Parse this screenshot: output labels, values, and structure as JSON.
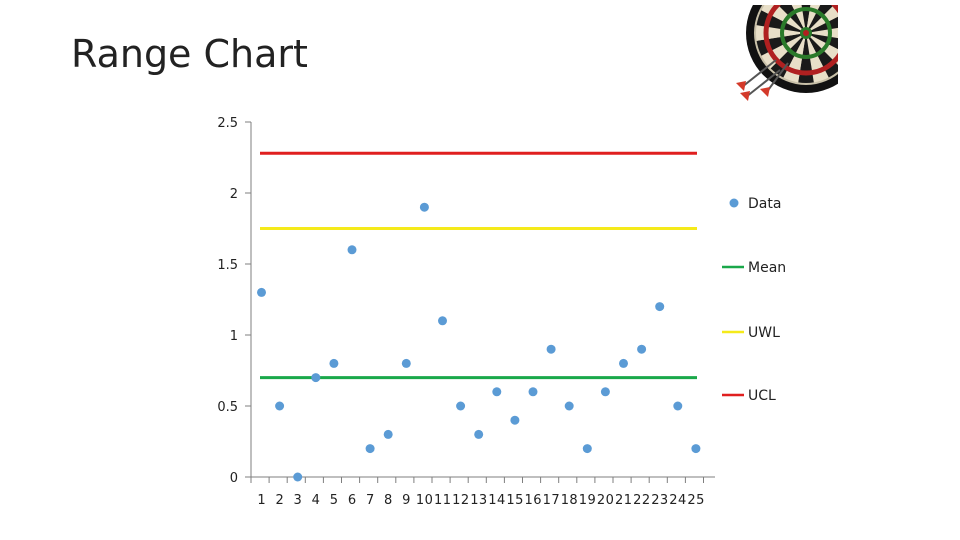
{
  "slide": {
    "title": "Range Chart"
  },
  "decoration": {
    "icon": "dartboard-with-darts-icon"
  },
  "chart_data": {
    "type": "scatter",
    "title": "",
    "xlabel": "",
    "ylabel": "",
    "x": [
      1,
      2,
      3,
      4,
      5,
      6,
      7,
      8,
      9,
      10,
      11,
      12,
      13,
      14,
      15,
      16,
      17,
      18,
      19,
      20,
      21,
      22,
      23,
      24,
      25
    ],
    "x_tick_labels": [
      "1",
      "2",
      "3",
      "4",
      "5",
      "6",
      "7",
      "8",
      "9",
      "10",
      "11",
      "12",
      "13",
      "14",
      "15",
      "16",
      "17",
      "18",
      "19",
      "20",
      "21",
      "22",
      "23",
      "24",
      "25"
    ],
    "y_tick_labels": [
      "0",
      "0.5",
      "1",
      "1.5",
      "2",
      "2.5"
    ],
    "y_ticks": [
      0,
      0.5,
      1,
      1.5,
      2,
      2.5
    ],
    "ylim": [
      0,
      2.5
    ],
    "grid": false,
    "legend_position": "right",
    "series": [
      {
        "name": "Data",
        "kind": "points",
        "color": "#5b9bd5",
        "values": [
          1.3,
          0.5,
          0.0,
          0.7,
          0.8,
          1.6,
          0.2,
          0.3,
          0.8,
          1.9,
          1.1,
          0.5,
          0.3,
          0.6,
          0.4,
          0.6,
          0.9,
          0.5,
          0.2,
          0.6,
          0.8,
          0.9,
          1.2,
          0.5,
          0.2
        ]
      },
      {
        "name": "Mean",
        "kind": "line",
        "color": "#1aa84a",
        "value": 0.7
      },
      {
        "name": "UWL",
        "kind": "line",
        "color": "#f5ea1a",
        "value": 1.75
      },
      {
        "name": "UCL",
        "kind": "line",
        "color": "#e01f1f",
        "value": 2.28
      }
    ]
  }
}
